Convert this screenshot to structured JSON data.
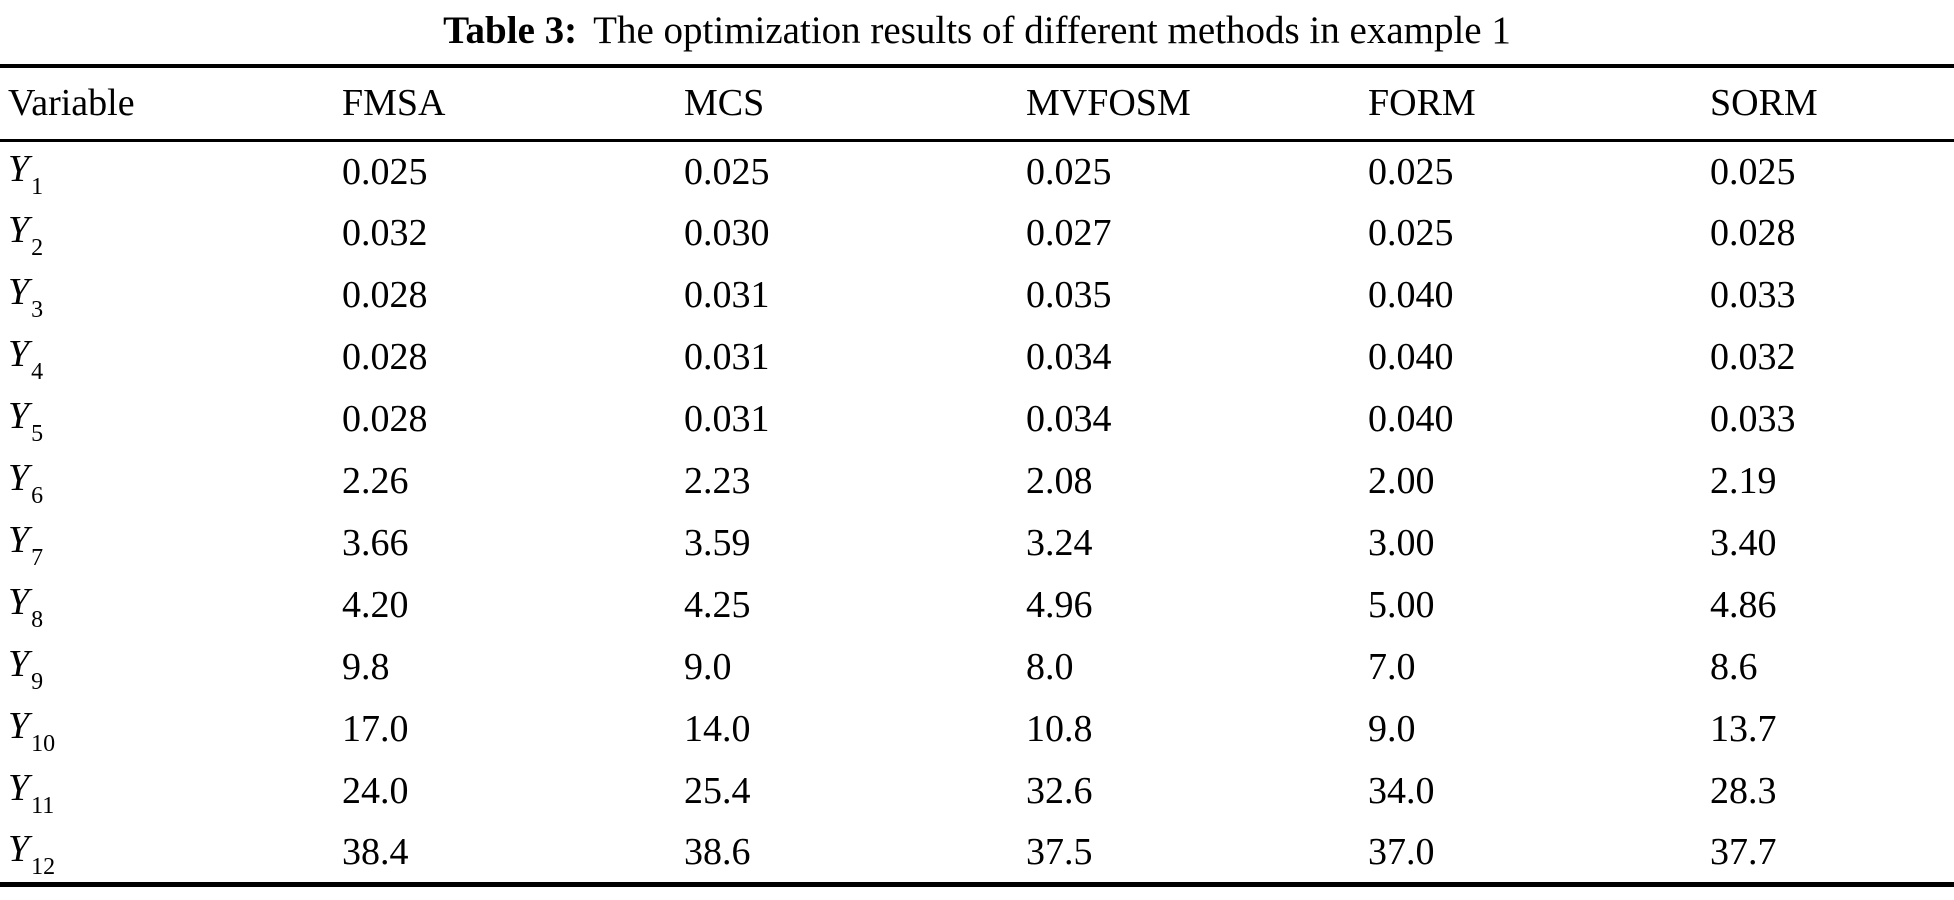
{
  "caption": {
    "label": "Table 3:",
    "text": "The optimization results of different methods in example 1"
  },
  "table": {
    "columns": [
      "Variable",
      "FMSA",
      "MCS",
      "MVFOSM",
      "FORM",
      "SORM"
    ],
    "rows": [
      {
        "variable": "Y",
        "subscript": "1",
        "values": [
          "0.025",
          "0.025",
          "0.025",
          "0.025",
          "0.025"
        ]
      },
      {
        "variable": "Y",
        "subscript": "2",
        "values": [
          "0.032",
          "0.030",
          "0.027",
          "0.025",
          "0.028"
        ]
      },
      {
        "variable": "Y",
        "subscript": "3",
        "values": [
          "0.028",
          "0.031",
          "0.035",
          "0.040",
          "0.033"
        ]
      },
      {
        "variable": "Y",
        "subscript": "4",
        "values": [
          "0.028",
          "0.031",
          "0.034",
          "0.040",
          "0.032"
        ]
      },
      {
        "variable": "Y",
        "subscript": "5",
        "values": [
          "0.028",
          "0.031",
          "0.034",
          "0.040",
          "0.033"
        ]
      },
      {
        "variable": "Y",
        "subscript": "6",
        "values": [
          "2.26",
          "2.23",
          "2.08",
          "2.00",
          "2.19"
        ]
      },
      {
        "variable": "Y",
        "subscript": "7",
        "values": [
          "3.66",
          "3.59",
          "3.24",
          "3.00",
          "3.40"
        ]
      },
      {
        "variable": "Y",
        "subscript": "8",
        "values": [
          "4.20",
          "4.25",
          "4.96",
          "5.00",
          "4.86"
        ]
      },
      {
        "variable": "Y",
        "subscript": "9",
        "values": [
          "9.8",
          "9.0",
          "8.0",
          "7.0",
          "8.6"
        ]
      },
      {
        "variable": "Y",
        "subscript": "10",
        "values": [
          "17.0",
          "14.0",
          "10.8",
          "9.0",
          "13.7"
        ]
      },
      {
        "variable": "Y",
        "subscript": "11",
        "values": [
          "24.0",
          "25.4",
          "32.6",
          "34.0",
          "28.3"
        ]
      },
      {
        "variable": "Y",
        "subscript": "12",
        "values": [
          "38.4",
          "38.6",
          "37.5",
          "37.0",
          "37.7"
        ]
      }
    ]
  },
  "colors": {
    "text": "#000000",
    "background": "#ffffff",
    "rule": "#000000"
  }
}
